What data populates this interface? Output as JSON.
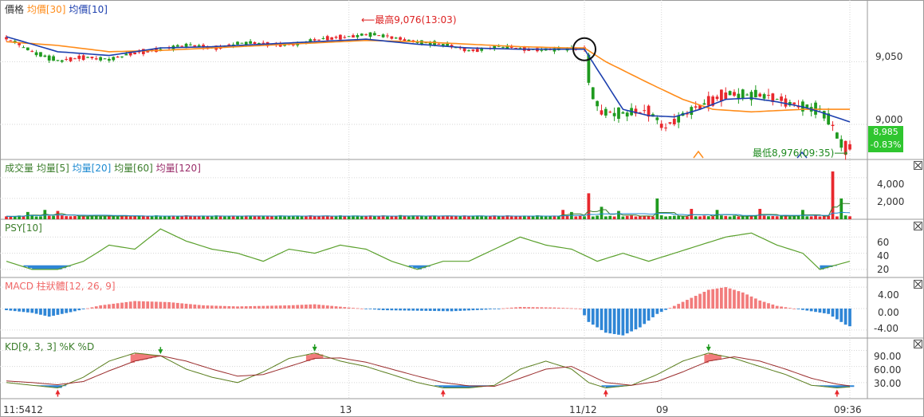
{
  "colors": {
    "up": "#e8282d",
    "down": "#1f9a1f",
    "avg30": "#ff8c1a",
    "avg10": "#1c3fae",
    "psy": "#5aa02c",
    "macd_pos": "#f27c7c",
    "macd_neg": "#2f86d6",
    "k_line": "#5a7e1e",
    "d_line": "#9a2d2d",
    "grid": "#d6d6d6",
    "axis_text": "#333333",
    "badge": "#2fc62f"
  },
  "price_panel": {
    "label": "價格",
    "legend": [
      {
        "text": "均價[30]",
        "color": "#ff8c1a"
      },
      {
        "text": "均價[10]",
        "color": "#1c3fae"
      }
    ],
    "high_note": "最高9,076(13:03)",
    "low_note": "最低8,976(09:35)",
    "last_price": "8,985",
    "last_change": "-0.83%",
    "y_ticks": [
      "9,050",
      "9,000"
    ]
  },
  "volume_panel": {
    "legend": [
      {
        "text": "成交量",
        "color": "#3a7d2a"
      },
      {
        "text": "均量[5]",
        "color": "#3a7d2a"
      },
      {
        "text": "均量[20]",
        "color": "#1c8ad1"
      },
      {
        "text": "均量[60]",
        "color": "#3a7d2a"
      },
      {
        "text": "均量[120]",
        "color": "#9a2d6a"
      }
    ],
    "y_ticks": [
      "4,000",
      "2,000"
    ]
  },
  "psy_panel": {
    "label": "PSY[10]",
    "y_ticks": [
      "60",
      "40",
      "20"
    ]
  },
  "macd_panel": {
    "label": "MACD 柱狀體[12, 26, 9]",
    "y_ticks": [
      "4.00",
      "0.00",
      "-4.00"
    ]
  },
  "kd_panel": {
    "label": "KD[9, 3, 3] %K %D",
    "y_ticks": [
      "90.00",
      "60.00",
      "30.00"
    ]
  },
  "x_labels": [
    {
      "text": "11:5412",
      "index": 0
    },
    {
      "text": "13",
      "index": 80
    },
    {
      "text": "11/12",
      "index": 135
    },
    {
      "text": "09",
      "index": 153
    },
    {
      "text": "09:36",
      "index": 197
    }
  ],
  "chart_data": {
    "type": "line",
    "title": "",
    "session_break_index": 135,
    "count": 198,
    "price": {
      "ylim": [
        8972,
        9098
      ],
      "ticks": [
        9050,
        9000
      ],
      "high": {
        "value": 9076,
        "index": 83
      },
      "low": {
        "value": 8976,
        "index": 196
      },
      "keys": [
        [
          0,
          9068
        ],
        [
          6,
          9058
        ],
        [
          12,
          9050
        ],
        [
          18,
          9054
        ],
        [
          24,
          9052
        ],
        [
          30,
          9057
        ],
        [
          36,
          9061
        ],
        [
          42,
          9063
        ],
        [
          48,
          9061
        ],
        [
          54,
          9065
        ],
        [
          60,
          9064
        ],
        [
          66,
          9064
        ],
        [
          72,
          9067
        ],
        [
          78,
          9070
        ],
        [
          84,
          9072
        ],
        [
          90,
          9069
        ],
        [
          96,
          9066
        ],
        [
          102,
          9063
        ],
        [
          108,
          9059
        ],
        [
          114,
          9062
        ],
        [
          120,
          9060
        ],
        [
          126,
          9060
        ],
        [
          132,
          9060
        ],
        [
          135,
          9060
        ],
        [
          136,
          9030
        ],
        [
          138,
          9012
        ],
        [
          144,
          9008
        ],
        [
          150,
          9010
        ],
        [
          153,
          8998
        ],
        [
          156,
          9005
        ],
        [
          162,
          9014
        ],
        [
          168,
          9026
        ],
        [
          174,
          9023
        ],
        [
          180,
          9020
        ],
        [
          186,
          9015
        ],
        [
          190,
          9010
        ],
        [
          193,
          8995
        ],
        [
          195,
          8980
        ],
        [
          197,
          8985
        ]
      ],
      "ma10_keys": [
        [
          0,
          9070
        ],
        [
          12,
          9058
        ],
        [
          24,
          9055
        ],
        [
          36,
          9061
        ],
        [
          48,
          9062
        ],
        [
          60,
          9064
        ],
        [
          72,
          9066
        ],
        [
          84,
          9068
        ],
        [
          96,
          9064
        ],
        [
          108,
          9061
        ],
        [
          120,
          9060
        ],
        [
          132,
          9060
        ],
        [
          135,
          9060
        ],
        [
          138,
          9044
        ],
        [
          144,
          9012
        ],
        [
          150,
          9007
        ],
        [
          156,
          9006
        ],
        [
          162,
          9012
        ],
        [
          168,
          9020
        ],
        [
          174,
          9021
        ],
        [
          180,
          9018
        ],
        [
          186,
          9014
        ],
        [
          190,
          9010
        ],
        [
          197,
          9002
        ]
      ],
      "ma30_keys": [
        [
          0,
          9066
        ],
        [
          12,
          9063
        ],
        [
          24,
          9058
        ],
        [
          36,
          9059
        ],
        [
          48,
          9061
        ],
        [
          60,
          9063
        ],
        [
          72,
          9065
        ],
        [
          84,
          9067
        ],
        [
          96,
          9066
        ],
        [
          108,
          9064
        ],
        [
          120,
          9062
        ],
        [
          132,
          9061
        ],
        [
          135,
          9061
        ],
        [
          140,
          9050
        ],
        [
          150,
          9033
        ],
        [
          158,
          9020
        ],
        [
          165,
          9012
        ],
        [
          174,
          9010
        ],
        [
          186,
          9012
        ],
        [
          197,
          9012
        ]
      ]
    },
    "volume": {
      "ylim": [
        0,
        5600
      ],
      "ticks": [
        4000,
        2000
      ],
      "base": 260,
      "spikes": [
        [
          5,
          700
        ],
        [
          9,
          900
        ],
        [
          12,
          800
        ],
        [
          92,
          400
        ],
        [
          130,
          900
        ],
        [
          132,
          700
        ],
        [
          136,
          2500
        ],
        [
          139,
          1200
        ],
        [
          143,
          800
        ],
        [
          152,
          2000
        ],
        [
          160,
          1000
        ],
        [
          166,
          900
        ],
        [
          176,
          1000
        ],
        [
          186,
          900
        ],
        [
          193,
          4600
        ],
        [
          195,
          2000
        ]
      ]
    },
    "psy": {
      "ylim": [
        10,
        80
      ],
      "ticks": [
        60,
        40,
        20
      ],
      "threshold": 25,
      "keys": [
        [
          0,
          30
        ],
        [
          6,
          20
        ],
        [
          12,
          20
        ],
        [
          18,
          30
        ],
        [
          24,
          50
        ],
        [
          30,
          45
        ],
        [
          36,
          70
        ],
        [
          42,
          55
        ],
        [
          48,
          45
        ],
        [
          54,
          40
        ],
        [
          60,
          30
        ],
        [
          66,
          45
        ],
        [
          72,
          40
        ],
        [
          78,
          50
        ],
        [
          84,
          45
        ],
        [
          90,
          30
        ],
        [
          96,
          20
        ],
        [
          102,
          30
        ],
        [
          108,
          30
        ],
        [
          114,
          45
        ],
        [
          120,
          60
        ],
        [
          126,
          50
        ],
        [
          132,
          45
        ],
        [
          138,
          30
        ],
        [
          144,
          40
        ],
        [
          150,
          30
        ],
        [
          156,
          40
        ],
        [
          162,
          50
        ],
        [
          168,
          60
        ],
        [
          174,
          65
        ],
        [
          180,
          50
        ],
        [
          186,
          40
        ],
        [
          190,
          20
        ],
        [
          197,
          30
        ]
      ]
    },
    "macd": {
      "ylim": [
        -5.5,
        5.5
      ],
      "ticks": [
        4,
        0,
        -4
      ],
      "keys": [
        [
          0,
          -0.3
        ],
        [
          6,
          -0.8
        ],
        [
          10,
          -1.5
        ],
        [
          16,
          -0.5
        ],
        [
          22,
          0.6
        ],
        [
          30,
          1.4
        ],
        [
          38,
          1.2
        ],
        [
          46,
          0.6
        ],
        [
          54,
          0.4
        ],
        [
          60,
          0.5
        ],
        [
          66,
          0.6
        ],
        [
          72,
          0.8
        ],
        [
          80,
          0.2
        ],
        [
          88,
          -0.3
        ],
        [
          96,
          -0.4
        ],
        [
          104,
          -0.5
        ],
        [
          112,
          -0.2
        ],
        [
          120,
          0.3
        ],
        [
          128,
          0.2
        ],
        [
          134,
          0
        ],
        [
          136,
          -2.5
        ],
        [
          140,
          -4.5
        ],
        [
          144,
          -5.0
        ],
        [
          148,
          -3.5
        ],
        [
          152,
          -1.0
        ],
        [
          156,
          0.5
        ],
        [
          160,
          2.0
        ],
        [
          164,
          3.5
        ],
        [
          168,
          4.0
        ],
        [
          172,
          3.0
        ],
        [
          176,
          1.5
        ],
        [
          180,
          0.5
        ],
        [
          184,
          0
        ],
        [
          188,
          -0.5
        ],
        [
          192,
          -1.0
        ],
        [
          196,
          -3.0
        ],
        [
          197,
          -3.3
        ]
      ]
    },
    "kd": {
      "ylim": [
        0,
        110
      ],
      "ticks": [
        90,
        60,
        30
      ],
      "k_keys": [
        [
          0,
          30
        ],
        [
          6,
          25
        ],
        [
          12,
          20
        ],
        [
          18,
          40
        ],
        [
          24,
          70
        ],
        [
          30,
          85
        ],
        [
          36,
          80
        ],
        [
          42,
          55
        ],
        [
          48,
          40
        ],
        [
          54,
          30
        ],
        [
          60,
          50
        ],
        [
          66,
          75
        ],
        [
          72,
          85
        ],
        [
          78,
          70
        ],
        [
          84,
          60
        ],
        [
          90,
          45
        ],
        [
          96,
          30
        ],
        [
          102,
          20
        ],
        [
          108,
          20
        ],
        [
          114,
          25
        ],
        [
          120,
          55
        ],
        [
          126,
          70
        ],
        [
          132,
          55
        ],
        [
          136,
          30
        ],
        [
          140,
          20
        ],
        [
          146,
          25
        ],
        [
          152,
          45
        ],
        [
          158,
          70
        ],
        [
          164,
          85
        ],
        [
          170,
          75
        ],
        [
          176,
          60
        ],
        [
          182,
          45
        ],
        [
          188,
          25
        ],
        [
          194,
          20
        ],
        [
          197,
          22
        ]
      ],
      "d_keys": [
        [
          0,
          33
        ],
        [
          6,
          30
        ],
        [
          12,
          26
        ],
        [
          18,
          32
        ],
        [
          24,
          52
        ],
        [
          30,
          70
        ],
        [
          36,
          80
        ],
        [
          42,
          70
        ],
        [
          48,
          55
        ],
        [
          54,
          42
        ],
        [
          60,
          45
        ],
        [
          66,
          60
        ],
        [
          72,
          75
        ],
        [
          78,
          76
        ],
        [
          84,
          68
        ],
        [
          90,
          55
        ],
        [
          96,
          42
        ],
        [
          102,
          30
        ],
        [
          108,
          24
        ],
        [
          114,
          23
        ],
        [
          120,
          38
        ],
        [
          126,
          55
        ],
        [
          132,
          60
        ],
        [
          136,
          45
        ],
        [
          140,
          30
        ],
        [
          146,
          25
        ],
        [
          152,
          32
        ],
        [
          158,
          50
        ],
        [
          164,
          70
        ],
        [
          170,
          78
        ],
        [
          176,
          70
        ],
        [
          182,
          55
        ],
        [
          188,
          38
        ],
        [
          194,
          27
        ],
        [
          197,
          24
        ]
      ]
    }
  }
}
